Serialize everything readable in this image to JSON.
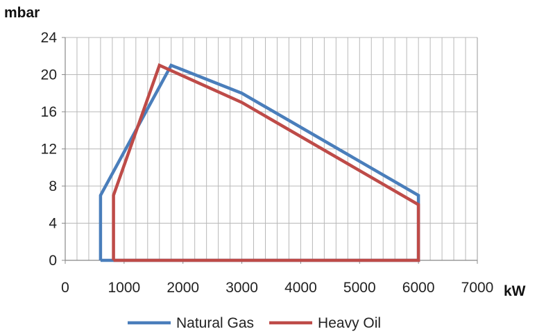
{
  "chart_data": {
    "type": "line",
    "ylabel": "mbar",
    "xlabel": "kW",
    "xlim": [
      0,
      7000
    ],
    "ylim": [
      0,
      24
    ],
    "x_ticks": [
      0,
      1000,
      2000,
      3000,
      4000,
      5000,
      6000,
      7000
    ],
    "y_ticks": [
      0,
      4,
      8,
      12,
      16,
      20,
      24
    ],
    "x_tick_labels": [
      "0",
      "1000",
      "2000",
      "3000",
      "4000",
      "5000",
      "6000",
      "7000"
    ],
    "y_tick_labels": [
      "0",
      "4",
      "8",
      "12",
      "16",
      "20",
      "24"
    ],
    "grid": true,
    "legend_position": "bottom",
    "series": [
      {
        "name": "Natural Gas",
        "color": "#4a7ebb",
        "points": [
          [
            600,
            0
          ],
          [
            600,
            7
          ],
          [
            1800,
            21
          ],
          [
            3000,
            18
          ],
          [
            6000,
            7
          ],
          [
            6000,
            0
          ],
          [
            600,
            0
          ]
        ]
      },
      {
        "name": "Heavy Oil",
        "color": "#be4b48",
        "points": [
          [
            820,
            0
          ],
          [
            820,
            7
          ],
          [
            1600,
            21
          ],
          [
            3000,
            17
          ],
          [
            6000,
            6
          ],
          [
            6000,
            0
          ],
          [
            820,
            0
          ]
        ]
      }
    ]
  }
}
